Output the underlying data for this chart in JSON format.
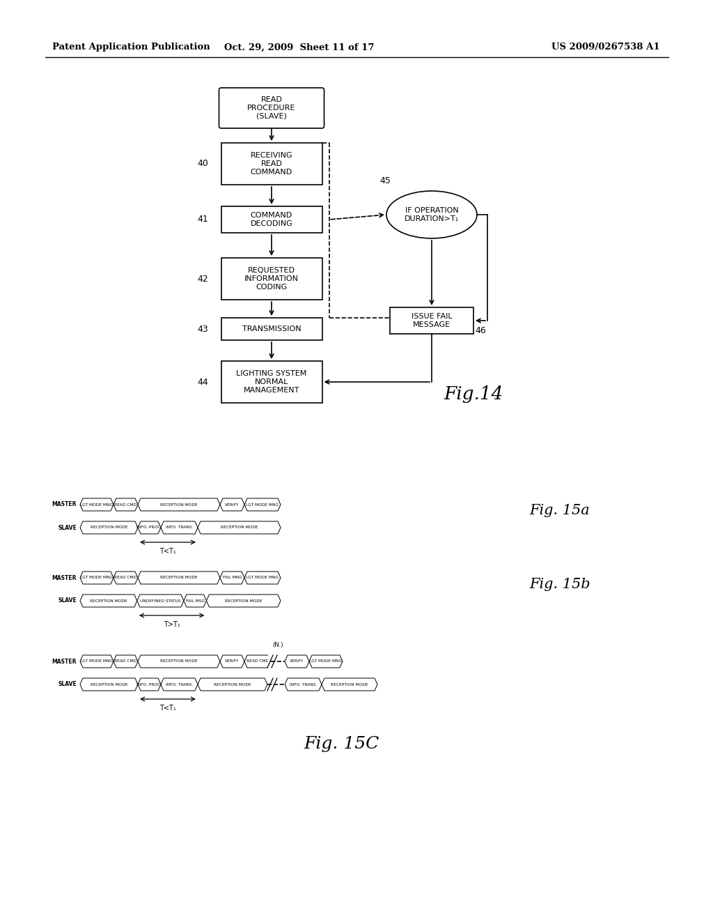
{
  "header_left": "Patent Application Publication",
  "header_mid": "Oct. 29, 2009  Sheet 11 of 17",
  "header_right": "US 2009/0267538 A1",
  "bg_color": "#ffffff",
  "fig14_title": "Fig.14",
  "fig15a_title": "Fig. 15a",
  "fig15b_title": "Fig. 15b",
  "fig15c_title": "Fig. 15C",
  "timing_label_a": "T<T₁",
  "timing_label_b": "T>T₁",
  "timing_label_c": "T<T₁",
  "note_c": "(N.)"
}
